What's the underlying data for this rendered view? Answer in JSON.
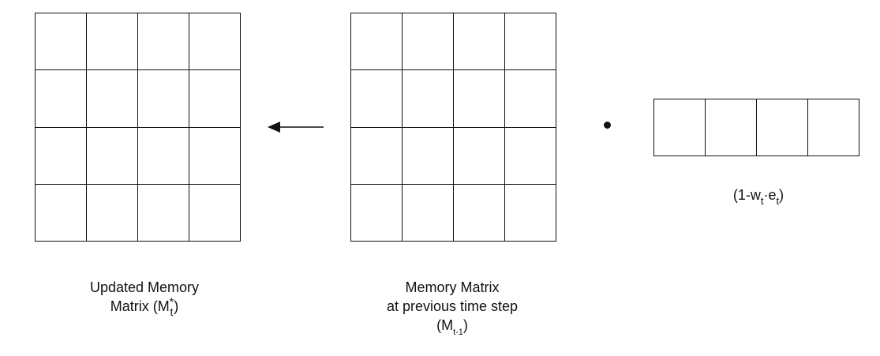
{
  "updated_matrix": {
    "label_line1": "Updated Memory",
    "label_line2_prefix": "Matrix (M",
    "symbol_sup": "*",
    "symbol_sub": "t",
    "label_suffix": ")"
  },
  "previous_matrix": {
    "label_line1": "Memory Matrix",
    "label_line2": "at previous time step",
    "symbol_prefix": "(M",
    "symbol_sub": "t-1",
    "symbol_suffix": ")"
  },
  "erase_vector": {
    "label_prefix": "(1-w",
    "sub_w": "t",
    "mid": "·e",
    "sub_e": "t",
    "label_suffix": ")"
  },
  "operator": "dot-product"
}
